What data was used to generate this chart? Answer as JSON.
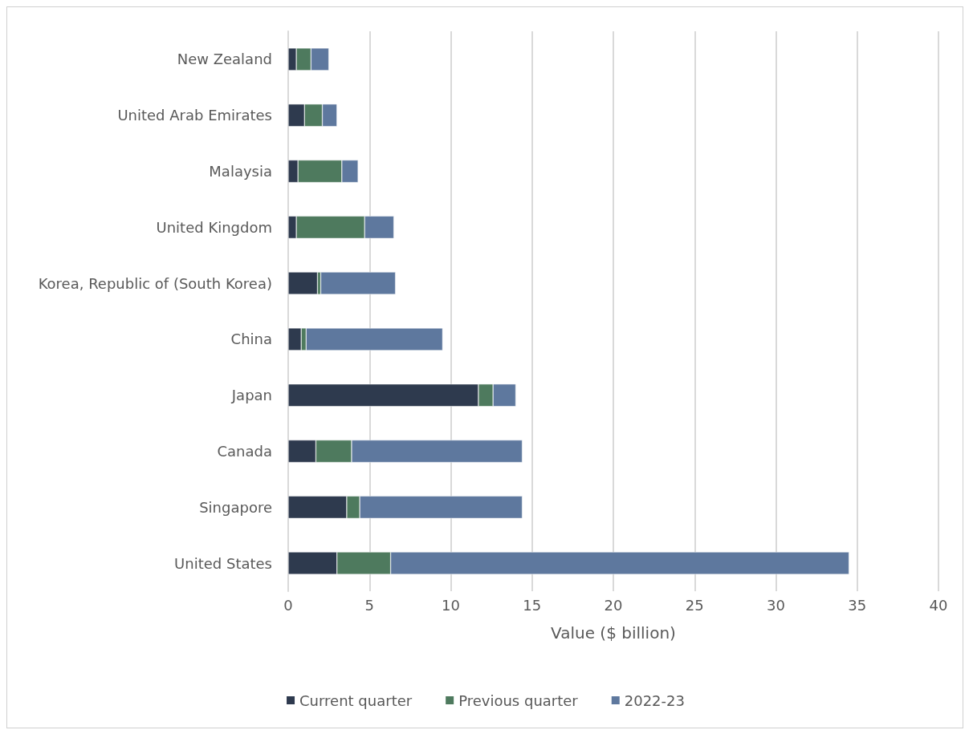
{
  "chart_data": {
    "type": "bar",
    "orientation": "horizontal",
    "stacked": true,
    "xlabel": "Value ($ billion)",
    "categories": [
      "New Zealand",
      "United Arab Emirates",
      "Malaysia",
      "United Kingdom",
      "Korea, Republic of (South Korea)",
      "China",
      "Japan",
      "Canada",
      "Singapore",
      "United States"
    ],
    "series": [
      {
        "name": "Current quarter",
        "color": "#2e3a4e",
        "values": [
          0.5,
          1.0,
          0.6,
          0.5,
          1.8,
          0.8,
          11.7,
          1.7,
          3.6,
          3.0
        ]
      },
      {
        "name": "Previous quarter",
        "color": "#4e7a5e",
        "values": [
          0.9,
          1.1,
          2.7,
          4.2,
          0.2,
          0.3,
          0.9,
          2.2,
          0.8,
          3.3
        ]
      },
      {
        "name": "2022-23",
        "color": "#5e789e",
        "values": [
          1.1,
          0.9,
          1.0,
          1.8,
          4.6,
          8.4,
          1.4,
          10.5,
          10.0,
          28.2
        ]
      }
    ],
    "xlim": [
      0,
      40
    ],
    "xticks": [
      0,
      5,
      10,
      15,
      20,
      25,
      30,
      35,
      40
    ],
    "grid": "x",
    "legend": "bottom"
  }
}
